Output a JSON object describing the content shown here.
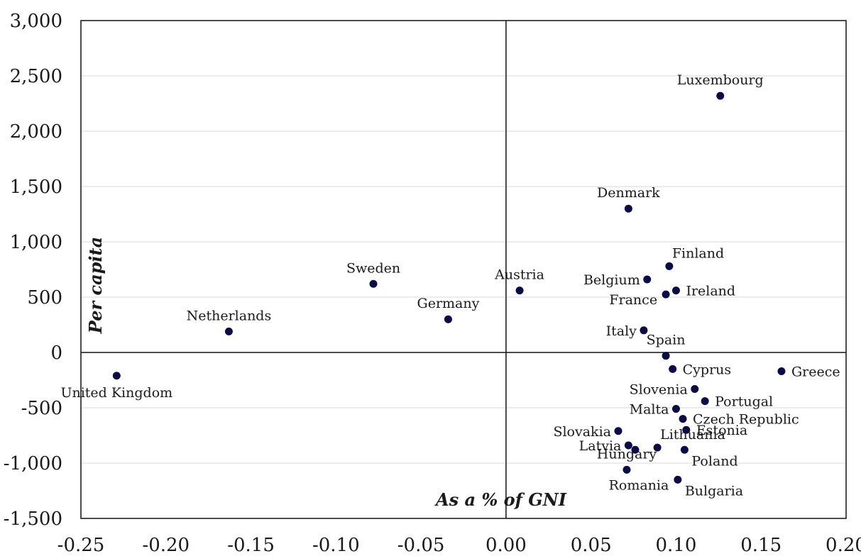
{
  "chart_data": {
    "type": "scatter",
    "xlabel": "As a % of GNI",
    "ylabel": "Per capita",
    "xlim": [
      -0.25,
      0.2
    ],
    "ylim": [
      -1500,
      3000
    ],
    "x_ticks": [
      -0.25,
      -0.2,
      -0.15,
      -0.1,
      -0.05,
      0.0,
      0.05,
      0.1,
      0.15,
      0.2
    ],
    "x_tick_labels": [
      "-0.25",
      "-0.20",
      "-0.15",
      "-0.10",
      "-0.05",
      "0.00",
      "0.05",
      "0.10",
      "0.15",
      "0.20"
    ],
    "y_ticks": [
      -1500,
      -1000,
      -500,
      0,
      500,
      1000,
      1500,
      2000,
      2500,
      3000
    ],
    "y_tick_labels": [
      "-1,500",
      "-1,000",
      "-500",
      "0",
      "500",
      "1,000",
      "1,500",
      "2,000",
      "2,500",
      "3,000"
    ],
    "grid": "horizontal",
    "marker_color": "#0b0b45",
    "points": [
      {
        "name": "Luxembourg",
        "x": 0.126,
        "y": 2320,
        "label_pos": "above"
      },
      {
        "name": "Denmark",
        "x": 0.072,
        "y": 1300,
        "label_pos": "above"
      },
      {
        "name": "Finland",
        "x": 0.096,
        "y": 780,
        "label_pos": "above-right"
      },
      {
        "name": "Belgium",
        "x": 0.083,
        "y": 660,
        "label_pos": "left"
      },
      {
        "name": "Ireland",
        "x": 0.1,
        "y": 560,
        "label_pos": "right"
      },
      {
        "name": "France",
        "x": 0.094,
        "y": 525,
        "label_pos": "left-below"
      },
      {
        "name": "Austria",
        "x": 0.008,
        "y": 560,
        "label_pos": "above"
      },
      {
        "name": "Sweden",
        "x": -0.078,
        "y": 620,
        "label_pos": "above"
      },
      {
        "name": "Germany",
        "x": -0.034,
        "y": 300,
        "label_pos": "above"
      },
      {
        "name": "Netherlands",
        "x": -0.163,
        "y": 190,
        "label_pos": "above"
      },
      {
        "name": "United Kingdom",
        "x": -0.229,
        "y": -210,
        "label_pos": "below"
      },
      {
        "name": "Italy",
        "x": 0.081,
        "y": 200,
        "label_pos": "left"
      },
      {
        "name": "Spain",
        "x": 0.094,
        "y": -30,
        "label_pos": "above"
      },
      {
        "name": "Cyprus",
        "x": 0.098,
        "y": -150,
        "label_pos": "right"
      },
      {
        "name": "Greece",
        "x": 0.162,
        "y": -170,
        "label_pos": "right"
      },
      {
        "name": "Slovenia",
        "x": 0.111,
        "y": -330,
        "label_pos": "left"
      },
      {
        "name": "Portugal",
        "x": 0.117,
        "y": -440,
        "label_pos": "right"
      },
      {
        "name": "Malta",
        "x": 0.1,
        "y": -510,
        "label_pos": "left"
      },
      {
        "name": "Czech Republic",
        "x": 0.104,
        "y": -600,
        "label_pos": "right"
      },
      {
        "name": "Estonia",
        "x": 0.106,
        "y": -700,
        "label_pos": "right"
      },
      {
        "name": "Slovakia",
        "x": 0.066,
        "y": -710,
        "label_pos": "left"
      },
      {
        "name": "Latvia",
        "x": 0.072,
        "y": -840,
        "label_pos": "left"
      },
      {
        "name": "Lithuania",
        "x": 0.089,
        "y": -860,
        "label_pos": "above-right"
      },
      {
        "name": "Poland",
        "x": 0.105,
        "y": -880,
        "label_pos": "below-right"
      },
      {
        "name": "Hungary",
        "x": 0.071,
        "y": -1060,
        "label_pos": "above"
      },
      {
        "name": "Romania",
        "x": 0.076,
        "y": -880,
        "label_pos": "below-far"
      },
      {
        "name": "Bulgaria",
        "x": 0.101,
        "y": -1150,
        "label_pos": "below-right"
      }
    ]
  }
}
